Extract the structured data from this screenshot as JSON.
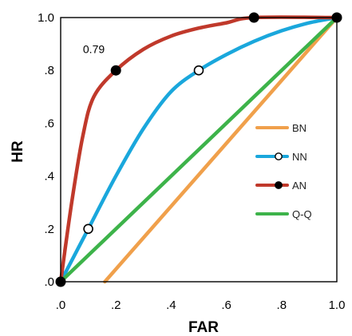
{
  "chart_data": {
    "type": "line",
    "xlabel": "FAR",
    "ylabel": "HR",
    "xlim": [
      0,
      1
    ],
    "ylim": [
      0,
      1
    ],
    "x_ticks": [
      {
        "value": 0.0,
        "label": ".0"
      },
      {
        "value": 0.2,
        "label": ".2"
      },
      {
        "value": 0.4,
        "label": ".4"
      },
      {
        "value": 0.6,
        "label": ".6"
      },
      {
        "value": 0.8,
        "label": ".8"
      },
      {
        "value": 1.0,
        "label": "1.0"
      }
    ],
    "y_ticks": [
      {
        "value": 0.0,
        "label": ".0"
      },
      {
        "value": 0.2,
        "label": ".2"
      },
      {
        "value": 0.4,
        "label": ".4"
      },
      {
        "value": 0.6,
        "label": ".6"
      },
      {
        "value": 0.8,
        "label": ".8"
      },
      {
        "value": 1.0,
        "label": "1.0"
      }
    ],
    "grid": false,
    "legend_position": "right",
    "series": [
      {
        "name": "BN",
        "color": "#f0a04b",
        "marker": "none",
        "points": [
          [
            0.16,
            0.0
          ],
          [
            1.0,
            1.0
          ]
        ],
        "markers": []
      },
      {
        "name": "NN",
        "color": "#1aa7dc",
        "marker": "open-circle",
        "points": [
          [
            0.0,
            0.0
          ],
          [
            0.05,
            0.1
          ],
          [
            0.1,
            0.2
          ],
          [
            0.2,
            0.4
          ],
          [
            0.3,
            0.58
          ],
          [
            0.4,
            0.72
          ],
          [
            0.5,
            0.8
          ],
          [
            0.6,
            0.86
          ],
          [
            0.7,
            0.91
          ],
          [
            0.8,
            0.95
          ],
          [
            0.9,
            0.98
          ],
          [
            1.0,
            1.0
          ]
        ],
        "markers": [
          [
            0.1,
            0.2
          ],
          [
            0.5,
            0.8
          ]
        ]
      },
      {
        "name": "AN",
        "color": "#c0392b",
        "marker": "filled-circle",
        "points": [
          [
            0.0,
            0.0
          ],
          [
            0.04,
            0.3
          ],
          [
            0.08,
            0.55
          ],
          [
            0.12,
            0.7
          ],
          [
            0.2,
            0.8
          ],
          [
            0.3,
            0.88
          ],
          [
            0.4,
            0.93
          ],
          [
            0.5,
            0.96
          ],
          [
            0.6,
            0.98
          ],
          [
            0.7,
            1.0
          ],
          [
            1.0,
            1.0
          ]
        ],
        "markers": [
          [
            0.0,
            0.0
          ],
          [
            0.2,
            0.8
          ],
          [
            0.7,
            1.0
          ],
          [
            1.0,
            1.0
          ]
        ]
      },
      {
        "name": "Q-Q",
        "color": "#3db34a",
        "marker": "none",
        "points": [
          [
            0.0,
            0.0
          ],
          [
            1.0,
            1.0
          ]
        ],
        "markers": []
      }
    ],
    "annotations": [
      {
        "text": "0.79",
        "x": 0.12,
        "y": 0.88
      }
    ]
  }
}
